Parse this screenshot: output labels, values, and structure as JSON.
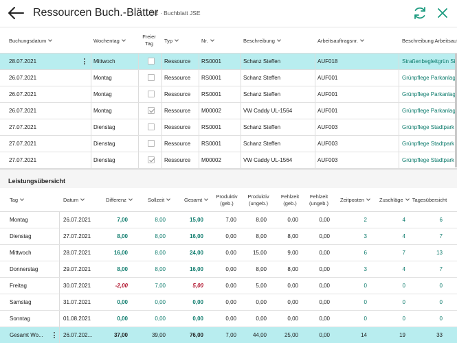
{
  "header": {
    "title": "Ressourcen Buch.-Blätter",
    "subtitle": "JSE · Buchblatt JSE"
  },
  "journal": {
    "columns": {
      "date": "Buchungsdatum",
      "weekday": "Wochentag",
      "holiday": "Freier Tag",
      "type": "Typ",
      "no": "Nr.",
      "desc": "Beschreibung",
      "job": "Arbeitsauftragsnr.",
      "jobdesc": "Beschreibung Arbeitsauft..."
    },
    "rows": [
      {
        "date": "28.07.2021",
        "weekday": "Mittwoch",
        "holiday": false,
        "type": "Ressource",
        "no": "RS0001",
        "desc": "Schanz Steffen",
        "job": "AUF018",
        "jobdesc": "Straßenbegleitgrün Sie",
        "selected": true
      },
      {
        "date": "26.07.2021",
        "weekday": "Montag",
        "holiday": false,
        "type": "Ressource",
        "no": "RS0001",
        "desc": "Schanz Steffen",
        "job": "AUF001",
        "jobdesc": "Grünpflege Parkanlage"
      },
      {
        "date": "26.07.2021",
        "weekday": "Montag",
        "holiday": false,
        "type": "Ressource",
        "no": "RS0001",
        "desc": "Schanz Steffen",
        "job": "AUF001",
        "jobdesc": "Grünpflege Parkanlage"
      },
      {
        "date": "26.07.2021",
        "weekday": "Montag",
        "holiday": true,
        "type": "Ressource",
        "no": "M00002",
        "desc": "VW Caddy UL-1564",
        "job": "AUF001",
        "jobdesc": "Grünpflege Parkanlage"
      },
      {
        "date": "27.07.2021",
        "weekday": "Dienstag",
        "holiday": false,
        "type": "Ressource",
        "no": "RS0001",
        "desc": "Schanz Steffen",
        "job": "AUF003",
        "jobdesc": "Grünpflege Stadtpark"
      },
      {
        "date": "27.07.2021",
        "weekday": "Dienstag",
        "holiday": false,
        "type": "Ressource",
        "no": "RS0001",
        "desc": "Schanz Steffen",
        "job": "AUF003",
        "jobdesc": "Grünpflege Stadtpark"
      },
      {
        "date": "27.07.2021",
        "weekday": "Dienstag",
        "holiday": true,
        "type": "Ressource",
        "no": "M00002",
        "desc": "VW Caddy UL-1564",
        "job": "AUF003",
        "jobdesc": "Grünpflege Stadtpark"
      }
    ]
  },
  "summary": {
    "title": "Leistungsübersicht",
    "columns": {
      "tag": "Tag",
      "datum": "Datum",
      "differenz": "Differenz",
      "sollzeit": "Sollzeit",
      "gesamt": "Gesamt",
      "prod_geb_1": "Produktiv",
      "prod_geb_2": "(geb.)",
      "prod_ungeb_1": "Produktiv",
      "prod_ungeb_2": "(ungeb.)",
      "fehl_geb_1": "Fehlzeit",
      "fehl_geb_2": "(geb.)",
      "fehl_ungeb_1": "Fehlzeit",
      "fehl_ungeb_2": "(ungeb.)",
      "zeitposten": "Zeitposten",
      "zuschlaege": "Zuschläge",
      "tages_1": "Tagesübersicht"
    },
    "rows": [
      {
        "tag": "Montag",
        "datum": "26.07.2021",
        "differenz": "7,00",
        "soll": "8,00",
        "gesamt": "15,00",
        "pg": "7,00",
        "pu": "8,00",
        "fg": "0,00",
        "fu": "0,00",
        "zp": "2",
        "zu": "4",
        "ta": "6",
        "neg": false
      },
      {
        "tag": "Dienstag",
        "datum": "27.07.2021",
        "differenz": "8,00",
        "soll": "8,00",
        "gesamt": "16,00",
        "pg": "0,00",
        "pu": "8,00",
        "fg": "8,00",
        "fu": "0,00",
        "zp": "3",
        "zu": "4",
        "ta": "7",
        "neg": false
      },
      {
        "tag": "Mittwoch",
        "datum": "28.07.2021",
        "differenz": "16,00",
        "soll": "8,00",
        "gesamt": "24,00",
        "pg": "0,00",
        "pu": "15,00",
        "fg": "9,00",
        "fu": "0,00",
        "zp": "6",
        "zu": "7",
        "ta": "13",
        "neg": false
      },
      {
        "tag": "Donnerstag",
        "datum": "29.07.2021",
        "differenz": "8,00",
        "soll": "8,00",
        "gesamt": "16,00",
        "pg": "0,00",
        "pu": "8,00",
        "fg": "8,00",
        "fu": "0,00",
        "zp": "3",
        "zu": "4",
        "ta": "7",
        "neg": false
      },
      {
        "tag": "Freitag",
        "datum": "30.07.2021",
        "differenz": "-2,00",
        "soll": "7,00",
        "gesamt": "5,00",
        "pg": "0,00",
        "pu": "5,00",
        "fg": "0,00",
        "fu": "0,00",
        "zp": "0",
        "zu": "0",
        "ta": "0",
        "neg": true
      },
      {
        "tag": "Samstag",
        "datum": "31.07.2021",
        "differenz": "0,00",
        "soll": "0,00",
        "gesamt": "0,00",
        "pg": "0,00",
        "pu": "0,00",
        "fg": "0,00",
        "fu": "0,00",
        "zp": "0",
        "zu": "0",
        "ta": "0",
        "neg": false
      },
      {
        "tag": "Sonntag",
        "datum": "01.08.2021",
        "differenz": "0,00",
        "soll": "0,00",
        "gesamt": "0,00",
        "pg": "0,00",
        "pu": "0,00",
        "fg": "0,00",
        "fu": "0,00",
        "zp": "0",
        "zu": "0",
        "ta": "0",
        "neg": false
      }
    ],
    "total": {
      "tag": "Gesamt Wo...",
      "datum": "26.07.202...",
      "differenz": "37,00",
      "soll": "39,00",
      "gesamt": "76,00",
      "pg": "7,00",
      "pu": "44,00",
      "fg": "25,00",
      "fu": "0,00",
      "zp": "14",
      "zu": "19",
      "ta": "33"
    }
  }
}
